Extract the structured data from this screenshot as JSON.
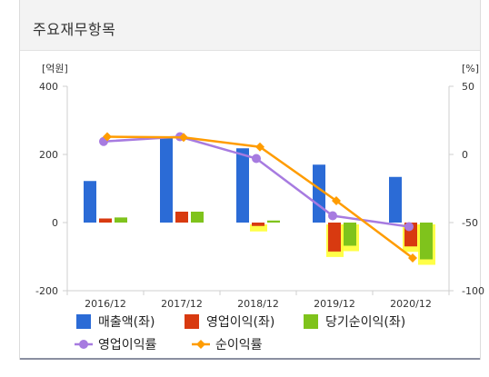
{
  "header": {
    "title": "주요재무항목"
  },
  "chart_data": {
    "type": "bar",
    "categories": [
      "2016/12",
      "2017/12",
      "2018/12",
      "2019/12",
      "2020/12"
    ],
    "series": [
      {
        "name": "매출액(좌)",
        "type": "bar",
        "axis": "left",
        "color": "#2b6bd6",
        "values": [
          122,
          248,
          218,
          170,
          134
        ]
      },
      {
        "name": "영업이익(좌)",
        "type": "bar",
        "axis": "left",
        "color": "#d83a10",
        "values": [
          12,
          32,
          -10,
          -85,
          -70
        ]
      },
      {
        "name": "당기순이익(좌)",
        "type": "bar",
        "axis": "left",
        "color": "#7fc31c",
        "values": [
          15,
          32,
          6,
          -68,
          -108
        ]
      },
      {
        "name": "영업이익률",
        "type": "line",
        "axis": "right",
        "color": "#a77be0",
        "values": [
          9.5,
          13,
          -3,
          -45,
          -53
        ]
      },
      {
        "name": "순이익률",
        "type": "line",
        "axis": "right",
        "color": "#ff9c00",
        "values": [
          13,
          12.5,
          5.5,
          -34,
          -76
        ]
      }
    ],
    "left_axis": {
      "unit": "[억원]",
      "ticks": [
        "400",
        "200",
        "0",
        "-200"
      ],
      "ylim": [
        -200,
        400
      ]
    },
    "right_axis": {
      "unit": "[%]",
      "ticks": [
        "50",
        "0",
        "-50",
        "-100"
      ],
      "ylim": [
        -100,
        50
      ]
    },
    "legend": {
      "placement": "bottom"
    },
    "grid": false
  }
}
